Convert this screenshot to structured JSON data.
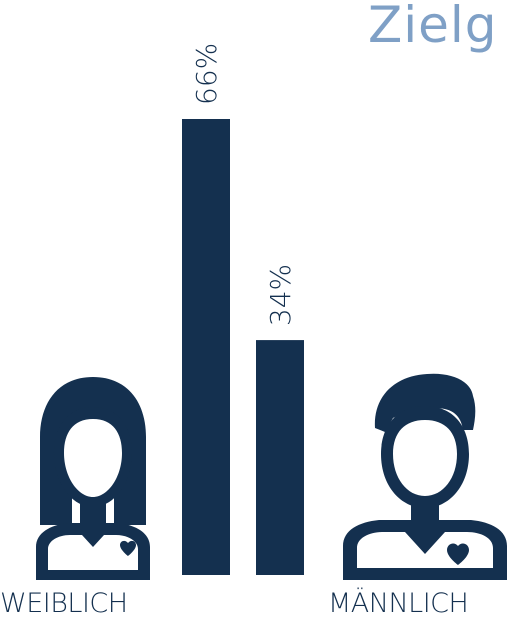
{
  "title": "Zielg",
  "colors": {
    "primary": "#14304f",
    "title": "#7fa0c6",
    "background": "#ffffff"
  },
  "icons": {
    "female": "woman-heart-icon",
    "male": "man-heart-icon"
  },
  "chart_data": {
    "type": "bar",
    "categories": [
      "WEIBLICH",
      "MÄNNLICH"
    ],
    "values": [
      66,
      34
    ],
    "value_labels": [
      "66%",
      "34%"
    ],
    "ylim": [
      0,
      100
    ],
    "grid": false
  }
}
